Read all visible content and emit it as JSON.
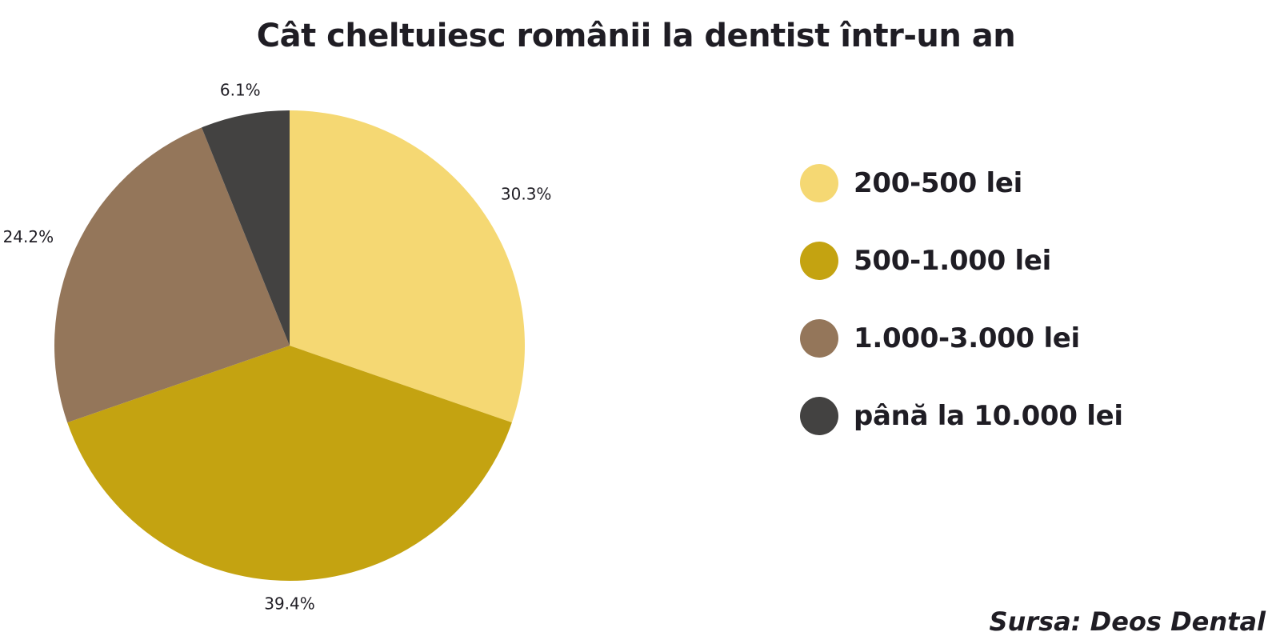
{
  "chart_data": {
    "type": "pie",
    "title": "Cât cheltuiesc românii la dentist într-un an",
    "categories": [
      "200-500 lei",
      "500-1.000 lei",
      "1.000-3.000 lei",
      "până la 10.000 lei"
    ],
    "values": [
      30.3,
      39.4,
      24.2,
      6.1
    ],
    "value_labels": [
      "30.3%",
      "39.4%",
      "24.2%",
      "6.1%"
    ],
    "colors": [
      "#f5d873",
      "#c4a311",
      "#94765a",
      "#434241"
    ],
    "start_angle": "12 o'clock",
    "direction": "clockwise",
    "legend_position": "right",
    "source": "Sursa: Deos Dental"
  }
}
